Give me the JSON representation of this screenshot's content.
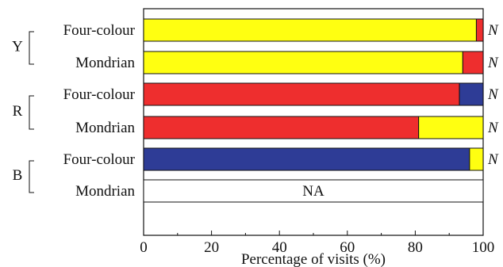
{
  "chart_data": {
    "type": "bar",
    "orientation": "horizontal",
    "stacked": true,
    "xlabel": "Percentage of visits (%)",
    "xlim": [
      0,
      100
    ],
    "xticks": [
      "0",
      "20",
      "40",
      "60",
      "80",
      "100"
    ],
    "colors": {
      "Y": "#ffff11",
      "R": "#ee2e2e",
      "B": "#2e3c96"
    },
    "groups": [
      {
        "label": "Y",
        "bars": [
          {
            "label": "Four-colour",
            "segments": [
              {
                "color": "Y",
                "value": 98
              },
              {
                "color": "R",
                "value": 2
              }
            ],
            "annotation": "N"
          },
          {
            "label": "Mondrian",
            "segments": [
              {
                "color": "Y",
                "value": 94
              },
              {
                "color": "R",
                "value": 6
              }
            ],
            "annotation": "N"
          }
        ]
      },
      {
        "label": "R",
        "bars": [
          {
            "label": "Four-colour",
            "segments": [
              {
                "color": "R",
                "value": 93
              },
              {
                "color": "B",
                "value": 7
              }
            ],
            "annotation": "N"
          },
          {
            "label": "Mondrian",
            "segments": [
              {
                "color": "R",
                "value": 81
              },
              {
                "color": "Y",
                "value": 19
              }
            ],
            "annotation": "N"
          }
        ]
      },
      {
        "label": "B",
        "bars": [
          {
            "label": "Four-colour",
            "segments": [
              {
                "color": "B",
                "value": 96
              },
              {
                "color": "Y",
                "value": 4
              }
            ],
            "annotation": "N"
          },
          {
            "label": "Mondrian",
            "segments": [],
            "na_text": "NA"
          }
        ]
      }
    ]
  }
}
